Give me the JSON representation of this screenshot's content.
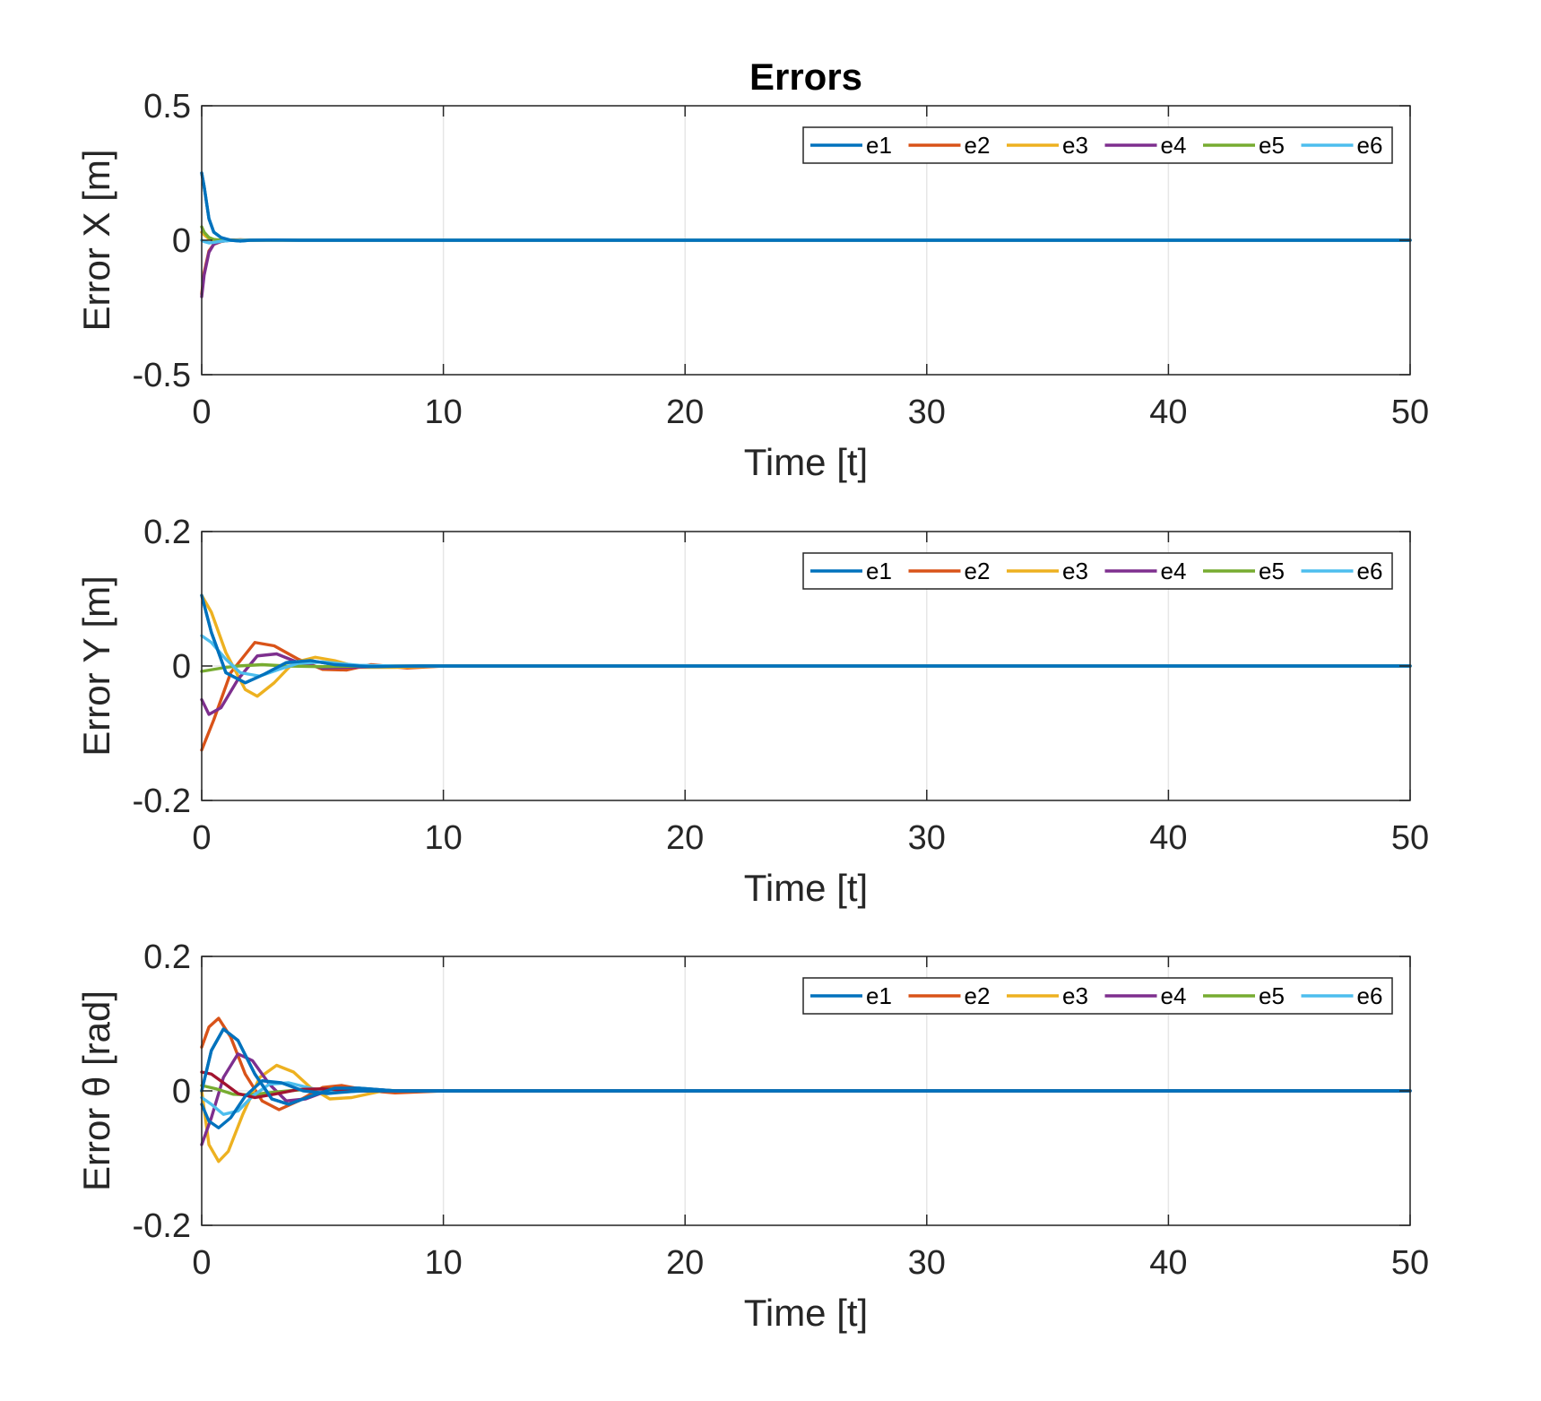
{
  "chart_data": [
    {
      "type": "line",
      "title": "Errors",
      "xlabel": "Time [t]",
      "ylabel": "Error X [m]",
      "xlim": [
        0,
        50
      ],
      "ylim": [
        -0.5,
        0.5
      ],
      "xticks": [
        0,
        10,
        20,
        30,
        40,
        50
      ],
      "xtick_labels": [
        "0",
        "10",
        "20",
        "30",
        "40",
        "50"
      ],
      "yticks": [
        -0.5,
        0,
        0.5
      ],
      "ytick_labels": [
        "-0.5",
        "0",
        "0.5"
      ],
      "grid": true,
      "legend": {
        "placement": "top-right",
        "orientation": "horizontal"
      },
      "series": [
        {
          "name": "e1",
          "color": "#0072BD",
          "x": [
            0,
            0.1,
            0.3,
            0.5,
            0.8,
            1.2,
            1.6,
            2,
            3,
            4,
            50
          ],
          "y": [
            0.25,
            0.2,
            0.08,
            0.03,
            0.01,
            0.0,
            -0.003,
            0.0,
            0.001,
            0.0,
            0.0
          ]
        },
        {
          "name": "e2",
          "color": "#D95319",
          "x": [
            0,
            0.1,
            0.3,
            0.5,
            0.8,
            1.2,
            1.6,
            2,
            3,
            4,
            50
          ],
          "y": [
            -0.2,
            -0.12,
            -0.04,
            -0.015,
            -0.005,
            0.0,
            0.002,
            0.0,
            0.0,
            0.0,
            0.0
          ]
        },
        {
          "name": "e3",
          "color": "#EDB120",
          "x": [
            0,
            0.1,
            0.3,
            0.5,
            0.8,
            1.2,
            2,
            3,
            50
          ],
          "y": [
            0.03,
            0.02,
            0.005,
            0.0,
            -0.002,
            0.0,
            0.0,
            0.0,
            0.0
          ]
        },
        {
          "name": "e4",
          "color": "#7E2F8E",
          "x": [
            0,
            0.1,
            0.3,
            0.5,
            0.8,
            1.2,
            2,
            3,
            50
          ],
          "y": [
            -0.21,
            -0.13,
            -0.045,
            -0.015,
            -0.004,
            0.0,
            0.0,
            0.0,
            0.0
          ]
        },
        {
          "name": "e5",
          "color": "#77AC30",
          "x": [
            0,
            0.1,
            0.3,
            0.5,
            0.8,
            1.2,
            2,
            3,
            50
          ],
          "y": [
            0.05,
            0.03,
            0.01,
            0.003,
            0.0,
            0.0,
            0.0,
            0.0,
            0.0
          ]
        },
        {
          "name": "e6",
          "color": "#4DBEEE",
          "x": [
            0,
            0.1,
            0.3,
            0.5,
            0.8,
            1.2,
            2,
            3,
            50
          ],
          "y": [
            0.0,
            -0.005,
            -0.01,
            -0.008,
            -0.004,
            -0.001,
            0.0,
            0.0,
            0.0
          ]
        }
      ]
    },
    {
      "type": "line",
      "title": "",
      "xlabel": "Time [t]",
      "ylabel": "Error Y [m]",
      "xlim": [
        0,
        50
      ],
      "ylim": [
        -0.2,
        0.2
      ],
      "xticks": [
        0,
        10,
        20,
        30,
        40,
        50
      ],
      "xtick_labels": [
        "0",
        "10",
        "20",
        "30",
        "40",
        "50"
      ],
      "yticks": [
        -0.2,
        0,
        0.2
      ],
      "ytick_labels": [
        "-0.2",
        "0",
        "0.2"
      ],
      "grid": true,
      "legend": {
        "placement": "top-right",
        "orientation": "horizontal"
      },
      "series": [
        {
          "name": "e1",
          "color": "#0072BD",
          "x": [
            0,
            0.4,
            1.0,
            1.8,
            2.6,
            3.5,
            4.5,
            5.5,
            7,
            9,
            12,
            50
          ],
          "y": [
            0.105,
            0.05,
            -0.01,
            -0.025,
            -0.012,
            0.005,
            0.008,
            0.002,
            -0.001,
            0.0,
            0.0,
            0.0
          ]
        },
        {
          "name": "e2",
          "color": "#D95319",
          "x": [
            0,
            0.5,
            1.2,
            2.2,
            3.0,
            4.0,
            5.0,
            6.0,
            7.0,
            8.5,
            10,
            12,
            50
          ],
          "y": [
            -0.125,
            -0.08,
            -0.01,
            0.035,
            0.03,
            0.01,
            -0.005,
            -0.006,
            0.002,
            -0.003,
            0.0,
            0.0,
            0.0
          ]
        },
        {
          "name": "e3",
          "color": "#EDB120",
          "x": [
            0,
            0.4,
            1.0,
            1.8,
            2.3,
            3.0,
            3.8,
            4.7,
            5.5,
            6.5,
            8,
            10,
            50
          ],
          "y": [
            0.105,
            0.08,
            0.02,
            -0.035,
            -0.045,
            -0.025,
            0.005,
            0.013,
            0.008,
            -0.002,
            -0.002,
            0.0,
            0.0
          ]
        },
        {
          "name": "e4",
          "color": "#7E2F8E",
          "x": [
            0,
            0.3,
            0.8,
            1.5,
            2.3,
            3.1,
            4.0,
            5.0,
            6.0,
            8,
            10,
            50
          ],
          "y": [
            -0.05,
            -0.072,
            -0.062,
            -0.02,
            0.015,
            0.018,
            0.005,
            -0.003,
            -0.002,
            0.0,
            0.0,
            0.0
          ]
        },
        {
          "name": "e5",
          "color": "#77AC30",
          "x": [
            0,
            0.5,
            1.0,
            1.5,
            2.5,
            3.5,
            5.0,
            7,
            50
          ],
          "y": [
            -0.008,
            -0.005,
            -0.002,
            0.0,
            0.002,
            0.0,
            -0.001,
            0.0,
            0.0
          ]
        },
        {
          "name": "e6",
          "color": "#4DBEEE",
          "x": [
            0,
            0.4,
            1.0,
            1.6,
            2.4,
            3.2,
            4.0,
            5.0,
            6.5,
            8,
            50
          ],
          "y": [
            0.045,
            0.035,
            0.01,
            -0.01,
            -0.015,
            -0.005,
            0.004,
            0.006,
            0.001,
            0.0,
            0.0
          ]
        }
      ]
    },
    {
      "type": "line",
      "title": "",
      "xlabel": "Time [t]",
      "ylabel": "Error θ [rad]",
      "xlim": [
        0,
        50
      ],
      "ylim": [
        -0.2,
        0.2
      ],
      "xticks": [
        0,
        10,
        20,
        30,
        40,
        50
      ],
      "xtick_labels": [
        "0",
        "10",
        "20",
        "30",
        "40",
        "50"
      ],
      "yticks": [
        -0.2,
        0,
        0.2
      ],
      "ytick_labels": [
        "-0.2",
        "0",
        "0.2"
      ],
      "grid": true,
      "legend": {
        "placement": "top-right",
        "orientation": "horizontal"
      },
      "series": [
        {
          "name": "e1",
          "color": "#0072BD",
          "x": [
            0,
            0.4,
            0.9,
            1.5,
            2.2,
            2.9,
            3.6,
            4.5,
            5.5,
            6.5,
            8,
            10,
            50
          ],
          "y": [
            0.0,
            0.06,
            0.092,
            0.075,
            0.025,
            -0.012,
            -0.02,
            -0.008,
            0.004,
            0.004,
            0.0,
            0.0,
            0.0
          ]
        },
        {
          "name": "e2",
          "color": "#D95319",
          "x": [
            0,
            0.3,
            0.7,
            1.2,
            1.8,
            2.5,
            3.2,
            4.0,
            5.0,
            5.8,
            7.0,
            8.0,
            10,
            50
          ],
          "y": [
            0.065,
            0.095,
            0.108,
            0.08,
            0.025,
            -0.015,
            -0.028,
            -0.015,
            0.005,
            0.008,
            0.0,
            -0.003,
            0.0,
            0.0
          ]
        },
        {
          "name": "e3",
          "color": "#EDB120",
          "x": [
            0,
            0.3,
            0.7,
            1.1,
            1.7,
            2.4,
            3.1,
            3.8,
            4.5,
            5.3,
            6.2,
            7.5,
            9,
            50
          ],
          "y": [
            0.0,
            -0.08,
            -0.105,
            -0.09,
            -0.035,
            0.02,
            0.038,
            0.028,
            0.005,
            -0.012,
            -0.01,
            0.0,
            0.0,
            0.0
          ]
        },
        {
          "name": "e4",
          "color": "#7E2F8E",
          "x": [
            0,
            0.4,
            0.9,
            1.5,
            2.1,
            2.8,
            3.5,
            4.3,
            5.2,
            6.3,
            8,
            10,
            50
          ],
          "y": [
            -0.08,
            -0.04,
            0.02,
            0.055,
            0.045,
            0.01,
            -0.015,
            -0.012,
            0.0,
            0.004,
            0.0,
            0.0,
            0.0
          ]
        },
        {
          "name": "e5",
          "color": "#77AC30",
          "x": [
            0,
            0.6,
            1.3,
            2.0,
            3.0,
            4.2,
            5.5,
            7.0,
            8.5,
            10,
            50
          ],
          "y": [
            0.008,
            0.003,
            -0.005,
            -0.006,
            -0.002,
            0.002,
            0.003,
            0.001,
            0.0,
            0.0,
            0.0
          ]
        },
        {
          "name": "e6",
          "color": "#4DBEEE",
          "x": [
            0,
            0.4,
            0.9,
            1.5,
            2.1,
            2.8,
            3.6,
            4.5,
            5.5,
            7.0,
            9,
            50
          ],
          "y": [
            -0.01,
            -0.02,
            -0.035,
            -0.03,
            -0.008,
            0.01,
            0.012,
            0.004,
            -0.002,
            0.0,
            0.0,
            0.0
          ]
        },
        {
          "name": "",
          "color": "#A2142F",
          "x": [
            0,
            0.4,
            0.9,
            1.5,
            2.2,
            3.0,
            4.0,
            5.0,
            6.5,
            8,
            50
          ],
          "y": [
            0.028,
            0.025,
            0.012,
            -0.004,
            -0.01,
            -0.005,
            0.002,
            0.003,
            0.0,
            0.0,
            0.0
          ]
        },
        {
          "name": "",
          "color": "#0072BD",
          "x": [
            0,
            0.3,
            0.7,
            1.2,
            1.8,
            2.5,
            3.3,
            4.2,
            5.2,
            6.5,
            8,
            50
          ],
          "y": [
            -0.02,
            -0.045,
            -0.055,
            -0.04,
            -0.008,
            0.015,
            0.012,
            0.0,
            -0.004,
            0.0,
            0.0,
            0.0
          ]
        }
      ]
    }
  ]
}
